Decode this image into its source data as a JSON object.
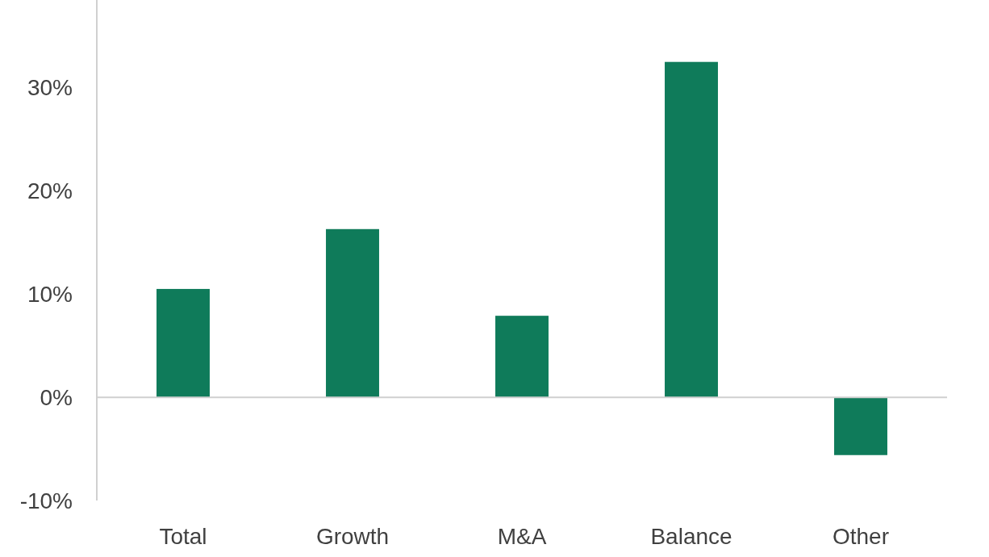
{
  "chart_data": {
    "type": "bar",
    "categories": [
      "Total",
      "Growth",
      "M&A",
      "Balance",
      "Other"
    ],
    "values": [
      10.5,
      16.3,
      7.9,
      32.5,
      -5.6
    ],
    "color": "#0f7b5a",
    "ylim": [
      -10,
      38.5
    ],
    "yticks": [
      {
        "value": -10,
        "label": "-10%"
      },
      {
        "value": 0,
        "label": "0%"
      },
      {
        "value": 10,
        "label": "10%"
      },
      {
        "value": 20,
        "label": "20%"
      },
      {
        "value": 30,
        "label": "30%"
      }
    ],
    "ref_lines": [
      {
        "axis": "y",
        "value": 0,
        "color": "#d0d0d0"
      }
    ]
  }
}
